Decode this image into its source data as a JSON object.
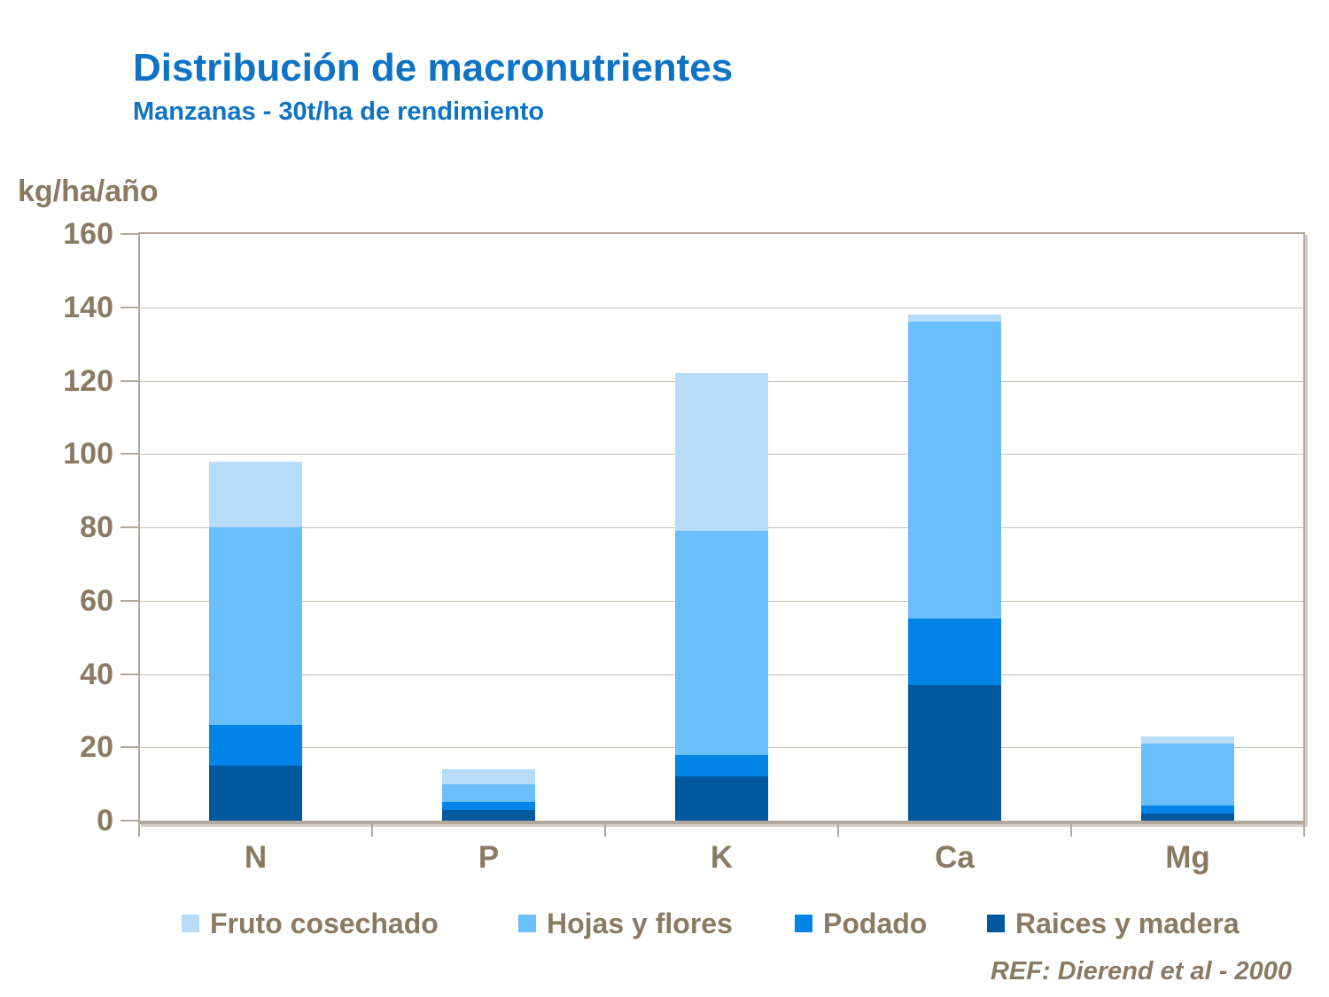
{
  "slide": {
    "title": "Distribución de macronutrientes",
    "subtitle": "Manzanas - 30t/ha de rendimiento",
    "reference": "REF: Dierend et al - 2000"
  },
  "colors": {
    "title_blue": "#0e73c4",
    "text_brown": "#8a7a63",
    "axis_tan": "#b2a89c",
    "gridline_tan": "#cac1b6",
    "background": "#ffffff"
  },
  "chart_data": {
    "type": "bar",
    "stacked": true,
    "title": "Distribución de macronutrientes",
    "subtitle": "Manzanas - 30t/ha de rendimiento",
    "ylabel": "kg/ha/año",
    "xlabel": "",
    "ylim": [
      0,
      160
    ],
    "ytick_interval": 20,
    "grid": "horizontal",
    "legend_position": "bottom",
    "categories": [
      "N",
      "P",
      "K",
      "Ca",
      "Mg"
    ],
    "series": [
      {
        "name": "Fruto cosechado",
        "color": "#b6dcfa",
        "values": [
          18,
          4,
          43,
          2,
          2
        ]
      },
      {
        "name": "Hojas y flores",
        "color": "#69befb",
        "values": [
          54,
          5,
          61,
          81,
          17
        ]
      },
      {
        "name": "Podado",
        "color": "#0084e8",
        "values": [
          11,
          2,
          6,
          18,
          2
        ]
      },
      {
        "name": "Raices y madera",
        "color": "#00589f",
        "values": [
          15,
          3,
          12,
          37,
          2
        ]
      }
    ],
    "stack_order_bottom_to_top": [
      "Raices y madera",
      "Podado",
      "Hojas y flores",
      "Fruto cosechado"
    ],
    "totals": {
      "N": 98,
      "P": 14,
      "K": 122,
      "Ca": 138,
      "Mg": 23
    }
  }
}
